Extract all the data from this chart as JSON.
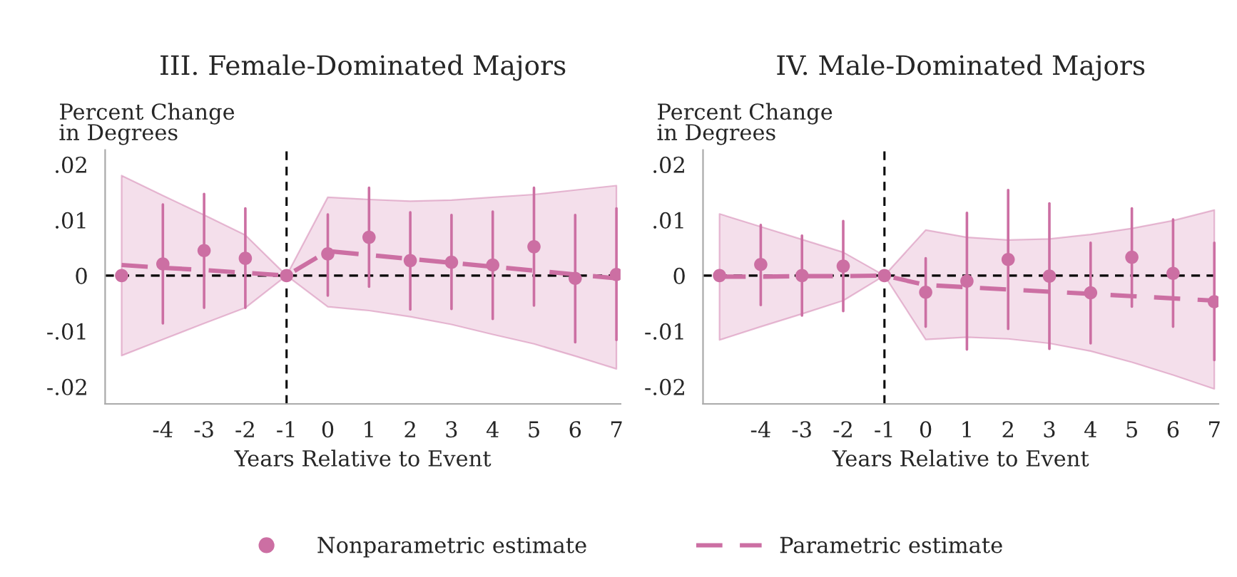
{
  "chart_data": [
    {
      "type": "scatter",
      "title": "III. Female-Dominated Majors",
      "xlabel": "Years Relative to Event",
      "ylabel": "Percent Change\nin Degrees",
      "x": [
        -5,
        -4,
        -3,
        -2,
        -1,
        0,
        1,
        2,
        3,
        4,
        5,
        6,
        7
      ],
      "series": [
        {
          "name": "Nonparametric estimate",
          "color": "#cc6fa3",
          "marker": "circle",
          "values": [
            0,
            0.0021,
            0.0045,
            0.0031,
            0,
            0.0039,
            0.0069,
            0.0027,
            0.0024,
            0.0019,
            0.0052,
            -0.0005,
            0.0002
          ],
          "errors": [
            null,
            [
              -0.0086,
              0.0128
            ],
            [
              -0.0058,
              0.0147
            ],
            [
              -0.0058,
              0.0121
            ],
            null,
            [
              -0.0036,
              0.011
            ],
            [
              -0.002,
              0.0158
            ],
            [
              -0.0061,
              0.0114
            ],
            [
              -0.006,
              0.0109
            ],
            [
              -0.0078,
              0.0115
            ],
            [
              -0.0054,
              0.0158
            ],
            [
              -0.012,
              0.0109
            ],
            [
              -0.0116,
              0.0121
            ]
          ]
        },
        {
          "name": "Parametric estimate",
          "type": "line",
          "color": "#cc6fa3",
          "line_style": "dashed",
          "values": [
            0.0019,
            0.0014,
            0.001,
            0.0005,
            0,
            0.0044,
            0.0037,
            0.003,
            0.0023,
            0.0016,
            0.0009,
            0.0002,
            -0.0005
          ],
          "lower": [
            -0.0144,
            -0.0115,
            -0.0086,
            -0.0058,
            0,
            -0.0056,
            -0.0063,
            -0.0074,
            -0.0088,
            -0.0106,
            -0.0123,
            -0.0145,
            -0.0168
          ],
          "upper": [
            0.018,
            0.0144,
            0.0109,
            0.0073,
            0,
            0.0141,
            0.0137,
            0.0134,
            0.0136,
            0.0141,
            0.0146,
            0.0154,
            0.0162
          ]
        }
      ],
      "xlim": [
        -5.4,
        7.1
      ],
      "xticks": [
        -4,
        -3,
        -2,
        -1,
        0,
        1,
        2,
        3,
        4,
        5,
        6,
        7
      ],
      "ylim": [
        -0.0231,
        0.0226
      ],
      "yticks": [
        {
          "value": -0.02,
          "label": "-.02"
        },
        {
          "value": -0.01,
          "label": "-.01"
        },
        0,
        {
          "value": 0.01,
          "label": ".01"
        },
        {
          "value": 0.02,
          "label": ".02"
        }
      ],
      "ref_lines": [
        {
          "axis": "x",
          "value": -1,
          "color": "#000000",
          "line_style": "dashed"
        },
        {
          "axis": "y",
          "value": 0,
          "color": "#000000",
          "line_style": "dashed"
        }
      ],
      "grid": false,
      "legend": "bottom"
    },
    {
      "type": "scatter",
      "title": "IV. Male-Dominated Majors",
      "xlabel": "Years Relative to Event",
      "ylabel": "Percent Change\nin Degrees",
      "x": [
        -5,
        -4,
        -3,
        -2,
        -1,
        0,
        1,
        2,
        3,
        4,
        5,
        6,
        7
      ],
      "series": [
        {
          "name": "Nonparametric estimate",
          "color": "#cc6fa3",
          "marker": "circle",
          "values": [
            0,
            0.002,
            0,
            0.0017,
            0,
            -0.003,
            -0.001,
            0.0029,
            -0.0001,
            -0.0031,
            0.0033,
            0.0004,
            -0.0047
          ],
          "errors": [
            null,
            [
              -0.0053,
              0.0091
            ],
            [
              -0.0072,
              0.0072
            ],
            [
              -0.0064,
              0.0098
            ],
            null,
            [
              -0.0092,
              0.0031
            ],
            [
              -0.0133,
              0.0113
            ],
            [
              -0.0096,
              0.0154
            ],
            [
              -0.0132,
              0.013
            ],
            [
              -0.0122,
              0.0059
            ],
            [
              -0.0056,
              0.0121
            ],
            [
              -0.0092,
              0.0101
            ],
            [
              -0.0152,
              0.0059
            ]
          ]
        },
        {
          "name": "Parametric estimate",
          "type": "line",
          "color": "#cc6fa3",
          "line_style": "dashed",
          "values": [
            -0.0002,
            -0.0002,
            -0.0001,
            -0.0001,
            0,
            -0.0017,
            -0.0021,
            -0.0025,
            -0.0029,
            -0.0033,
            -0.0037,
            -0.0041,
            -0.0045
          ],
          "lower": [
            -0.0116,
            -0.0092,
            -0.0069,
            -0.0045,
            0,
            -0.0115,
            -0.0111,
            -0.0114,
            -0.0122,
            -0.0136,
            -0.0156,
            -0.0179,
            -0.0204
          ],
          "upper": [
            0.0111,
            0.0088,
            0.0065,
            0.0042,
            0,
            0.0082,
            0.0069,
            0.0064,
            0.0066,
            0.0074,
            0.0085,
            0.0099,
            0.0118
          ]
        }
      ],
      "xlim": [
        -5.4,
        7.1
      ],
      "xticks": [
        -4,
        -3,
        -2,
        -1,
        0,
        1,
        2,
        3,
        4,
        5,
        6,
        7
      ],
      "ylim": [
        -0.0231,
        0.0226
      ],
      "yticks": [
        {
          "value": -0.02,
          "label": "-.02"
        },
        {
          "value": -0.01,
          "label": "-.01"
        },
        0,
        {
          "value": 0.01,
          "label": ".01"
        },
        {
          "value": 0.02,
          "label": ".02"
        }
      ],
      "ref_lines": [
        {
          "axis": "x",
          "value": -1,
          "color": "#000000",
          "line_style": "dashed"
        },
        {
          "axis": "y",
          "value": 0,
          "color": "#000000",
          "line_style": "dashed"
        }
      ],
      "grid": false,
      "legend": "bottom"
    }
  ]
}
